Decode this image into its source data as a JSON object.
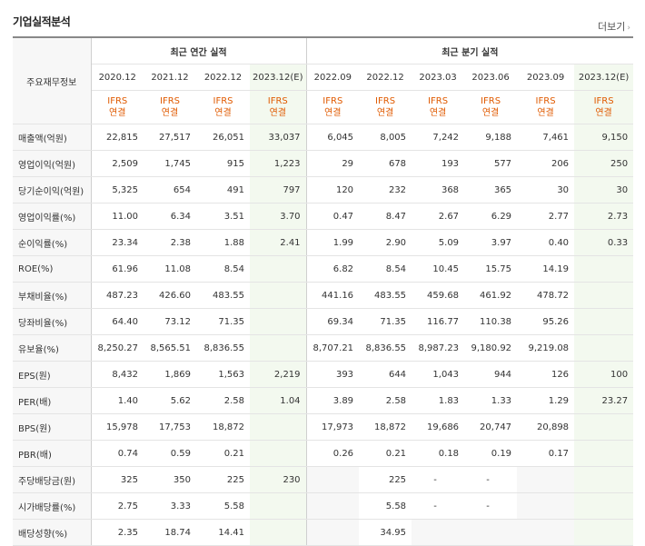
{
  "title": "기업실적분석",
  "more": "더보기",
  "header": {
    "row_label": "주요재무정보",
    "annual": "최근 연간 실적",
    "quarterly": "최근 분기 실적",
    "periods": [
      "2020.12",
      "2021.12",
      "2022.12",
      "2023.12(E)",
      "2022.09",
      "2022.12",
      "2023.03",
      "2023.06",
      "2023.09",
      "2023.12(E)"
    ],
    "ifrs_top": "IFRS",
    "ifrs_bottom": "연결"
  },
  "rows": [
    {
      "label": "매출액(억원)",
      "values": [
        "22,815",
        "27,517",
        "26,051",
        "33,037",
        "6,045",
        "8,005",
        "7,242",
        "9,188",
        "7,461",
        "9,150"
      ]
    },
    {
      "label": "영업이익(억원)",
      "values": [
        "2,509",
        "1,745",
        "915",
        "1,223",
        "29",
        "678",
        "193",
        "577",
        "206",
        "250"
      ]
    },
    {
      "label": "당기순이익(억원)",
      "values": [
        "5,325",
        "654",
        "491",
        "797",
        "120",
        "232",
        "368",
        "365",
        "30",
        "30"
      ]
    },
    {
      "label": "영업이익률(%)",
      "values": [
        "11.00",
        "6.34",
        "3.51",
        "3.70",
        "0.47",
        "8.47",
        "2.67",
        "6.29",
        "2.77",
        "2.73"
      ]
    },
    {
      "label": "순이익률(%)",
      "values": [
        "23.34",
        "2.38",
        "1.88",
        "2.41",
        "1.99",
        "2.90",
        "5.09",
        "3.97",
        "0.40",
        "0.33"
      ]
    },
    {
      "label": "ROE(%)",
      "values": [
        "61.96",
        "11.08",
        "8.54",
        "",
        "6.82",
        "8.54",
        "10.45",
        "15.75",
        "14.19",
        ""
      ]
    },
    {
      "label": "부채비율(%)",
      "values": [
        "487.23",
        "426.60",
        "483.55",
        "",
        "441.16",
        "483.55",
        "459.68",
        "461.92",
        "478.72",
        ""
      ]
    },
    {
      "label": "당좌비율(%)",
      "values": [
        "64.40",
        "73.12",
        "71.35",
        "",
        "69.34",
        "71.35",
        "116.77",
        "110.38",
        "95.26",
        ""
      ]
    },
    {
      "label": "유보율(%)",
      "values": [
        "8,250.27",
        "8,565.51",
        "8,836.55",
        "",
        "8,707.21",
        "8,836.55",
        "8,987.23",
        "9,180.92",
        "9,219.08",
        ""
      ]
    },
    {
      "label": "EPS(원)",
      "values": [
        "8,432",
        "1,869",
        "1,563",
        "2,219",
        "393",
        "644",
        "1,043",
        "944",
        "126",
        "100"
      ]
    },
    {
      "label": "PER(배)",
      "values": [
        "1.40",
        "5.62",
        "2.58",
        "1.04",
        "3.89",
        "2.58",
        "1.83",
        "1.33",
        "1.29",
        "23.27"
      ]
    },
    {
      "label": "BPS(원)",
      "values": [
        "15,978",
        "17,753",
        "18,872",
        "",
        "17,973",
        "18,872",
        "19,686",
        "20,747",
        "20,898",
        ""
      ]
    },
    {
      "label": "PBR(배)",
      "values": [
        "0.74",
        "0.59",
        "0.21",
        "",
        "0.26",
        "0.21",
        "0.18",
        "0.19",
        "0.17",
        ""
      ]
    },
    {
      "label": "주당배당금(원)",
      "values": [
        "325",
        "350",
        "225",
        "230",
        "",
        "225",
        "-",
        "-",
        "",
        ""
      ]
    },
    {
      "label": "시가배당률(%)",
      "values": [
        "2.75",
        "3.33",
        "5.58",
        "",
        "",
        "5.58",
        "-",
        "-",
        "",
        ""
      ]
    },
    {
      "label": "배당성향(%)",
      "values": [
        "2.35",
        "18.74",
        "14.41",
        "",
        "",
        "34.95",
        "",
        "",
        "",
        ""
      ]
    }
  ]
}
